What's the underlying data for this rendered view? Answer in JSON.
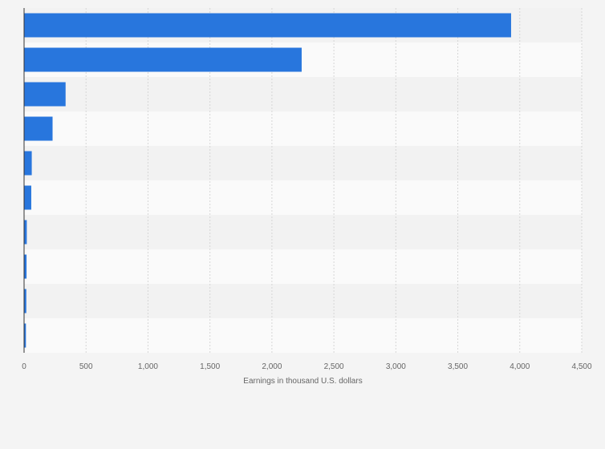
{
  "chart_data": {
    "type": "bar",
    "orientation": "horizontal",
    "categories": [
      "",
      "",
      "",
      "",
      "",
      "",
      "",
      "",
      "",
      ""
    ],
    "values": [
      3930,
      2240,
      335,
      230,
      62,
      58,
      22,
      20,
      18,
      15
    ],
    "xlabel": "Earnings in thousand U.S. dollars",
    "ylabel": "",
    "xlim": [
      0,
      4500
    ],
    "xticks": [
      0,
      500,
      1000,
      1500,
      2000,
      2500,
      3000,
      3500,
      4000,
      4500
    ],
    "xtick_labels": [
      "0",
      "500",
      "1,000",
      "1,500",
      "2,000",
      "2,500",
      "3,000",
      "3,500",
      "4,000",
      "4,500"
    ],
    "grid": true,
    "colors": {
      "bar": "#2876dd",
      "band_light": "#fafafa",
      "band_dark": "#f2f2f2",
      "gridline": "#d6d6d6",
      "axis": "#333333",
      "text": "#666666"
    }
  }
}
